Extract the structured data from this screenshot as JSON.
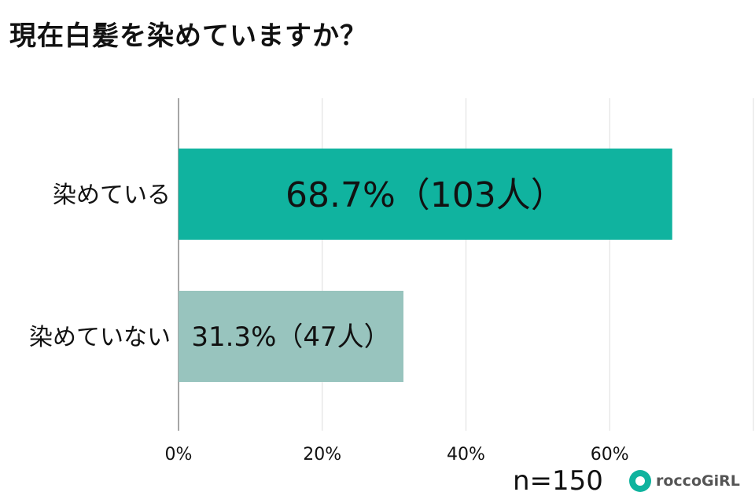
{
  "chart_data": {
    "type": "bar",
    "orientation": "horizontal",
    "title": "現在白髪を染めていますか？",
    "categories": [
      "染めている",
      "染めていない"
    ],
    "values": [
      68.7,
      31.3
    ],
    "data_labels": [
      "68.7%（103人）",
      "31.3%（47人）"
    ],
    "xlim": [
      0,
      80
    ],
    "x_ticks": [
      0,
      20,
      40,
      60
    ],
    "x_tick_labels": [
      "0%",
      "20%",
      "40%",
      "60%"
    ],
    "grid": true,
    "colors": [
      "#10b39f",
      "#98c4be"
    ]
  },
  "footer": {
    "sample_size": "n=150",
    "brand": "roccoGiRL",
    "brand_color": "#0fb39e"
  }
}
